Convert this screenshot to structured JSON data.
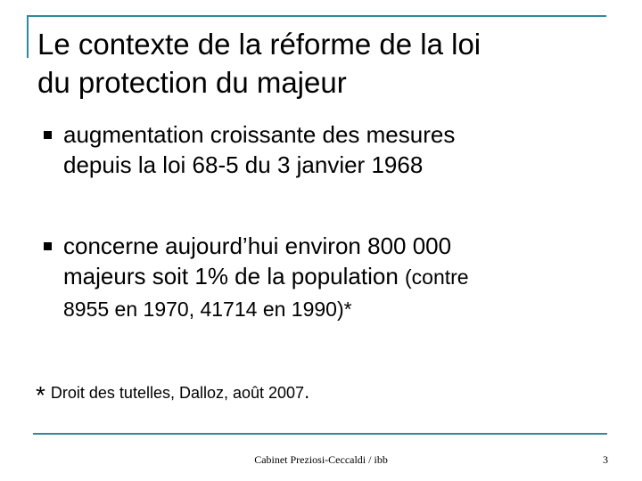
{
  "slide": {
    "title_line1": "Le contexte de la réforme de la loi",
    "title_line2": "du protection du majeur",
    "bullet_marker": "n",
    "bullets": [
      {
        "line1": "augmentation croissante des mesures",
        "line2": "depuis la loi 68-5 du 3 janvier 1968"
      },
      {
        "line1": "concerne aujourd’hui environ 800 000",
        "line2_main": "majeurs soit 1% de la population ",
        "line2_small": "(contre",
        "line3": "8955 en 1970, 41714 en 1990)*"
      }
    ],
    "footnote": {
      "star": "*",
      "text": "Droit des tutelles, Dalloz, août 2007",
      "period": "."
    }
  },
  "footer": {
    "text": "Cabinet Preziosi-Ceccaldi / ibb",
    "page_number": "3"
  },
  "colors": {
    "accent": "#2e8b9a",
    "text": "#000000",
    "background": "#ffffff"
  }
}
